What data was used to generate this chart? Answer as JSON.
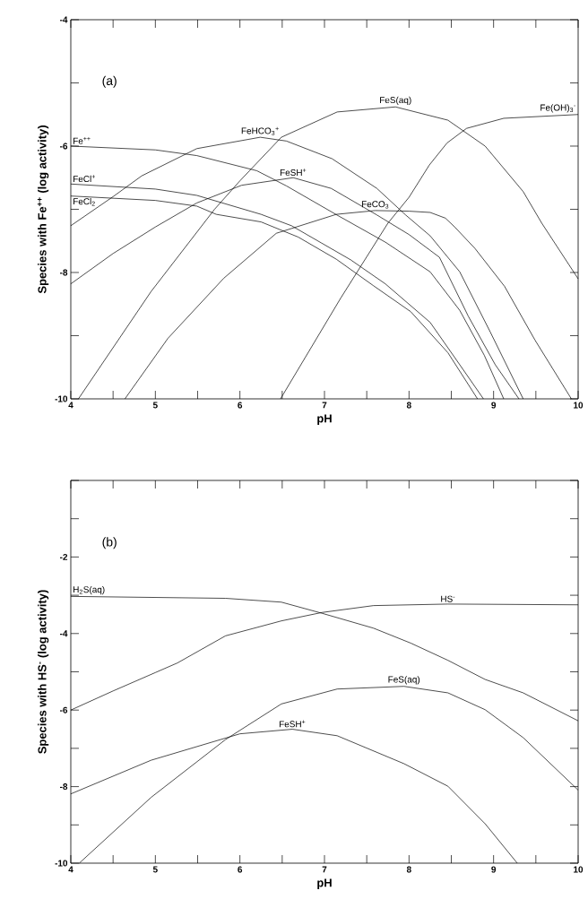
{
  "chart_data": [
    {
      "type": "line",
      "xlabel": "pH",
      "ylabel": "Species with Fe$^{++}$ (log activity)",
      "annotations": [
        "(a)"
      ],
      "xlim": [
        4,
        10
      ],
      "ylim": [
        -10,
        -4
      ],
      "xticks": [
        4,
        {
          "value": 4.5,
          "label": null
        },
        5,
        {
          "value": 5.5,
          "label": null
        },
        6,
        {
          "value": 6.5,
          "label": null
        },
        7,
        {
          "value": 7.5,
          "label": null
        },
        8,
        {
          "value": 8.5,
          "label": null
        },
        9,
        {
          "value": 9.5,
          "label": null
        },
        10
      ],
      "yticks": [
        -10,
        {
          "value": -9,
          "label": null
        },
        -8,
        {
          "value": -7,
          "label": null
        },
        -6,
        {
          "value": -5,
          "label": null
        },
        -4
      ],
      "grid": false,
      "marker": "none",
      "line_style": "solid",
      "series": [
        {
          "name": "Fe$^{++}$",
          "color": "#000000",
          "x": [
            4,
            5,
            5.49,
            6.2,
            6.55,
            7.16,
            7.72,
            8.25,
            8.6,
            8.89,
            9.12
          ],
          "values": [
            -6.0,
            -6.06,
            -6.15,
            -6.39,
            -6.63,
            -7.1,
            -7.52,
            -7.99,
            -8.6,
            -9.31,
            -10
          ]
        },
        {
          "name": "FeCl$^{+}$",
          "color": "#000000",
          "x": [
            4,
            5,
            5.49,
            6.25,
            6.61,
            6.96,
            7.31,
            7.72,
            8.25,
            8.6,
            8.88
          ],
          "values": [
            -6.6,
            -6.68,
            -6.78,
            -7.08,
            -7.26,
            -7.53,
            -7.8,
            -8.18,
            -8.79,
            -9.46,
            -10
          ]
        },
        {
          "name": "FeCl$_{2}$",
          "color": "#000000",
          "x": [
            4,
            5,
            5.49,
            5.72,
            6.25,
            6.69,
            7.14,
            7.58,
            8.02,
            8.46,
            8.81
          ],
          "values": [
            -6.79,
            -6.86,
            -6.95,
            -7.08,
            -7.2,
            -7.44,
            -7.79,
            -8.21,
            -8.62,
            -9.27,
            -10
          ]
        },
        {
          "name": "FeHCO$_{3}$$^{+}$",
          "color": "#000000",
          "x": [
            4,
            4.5,
            4.84,
            5.49,
            6.24,
            6.55,
            7.09,
            7.62,
            7.96,
            8.25,
            8.6,
            8.96,
            9.35
          ],
          "values": [
            -7.26,
            -6.8,
            -6.47,
            -6.04,
            -5.86,
            -5.92,
            -6.2,
            -6.67,
            -7.09,
            -7.42,
            -7.99,
            -8.94,
            -10
          ]
        },
        {
          "name": "FeSH$^{+}$",
          "color": "#000000",
          "x": [
            4,
            4.5,
            5,
            5.49,
            6.02,
            6.63,
            7.08,
            7.62,
            8.0,
            8.36,
            8.7,
            9.02,
            9.3
          ],
          "values": [
            -8.18,
            -7.7,
            -7.28,
            -6.9,
            -6.62,
            -6.5,
            -6.67,
            -7.09,
            -7.4,
            -7.76,
            -8.69,
            -9.46,
            -10
          ]
        },
        {
          "name": "FeS(aq)",
          "color": "#000000",
          "x": [
            4.09,
            4.95,
            5.7,
            6.0,
            6.49,
            7.15,
            7.84,
            8.46,
            8.9,
            9.35,
            9.57,
            10
          ],
          "values": [
            -10,
            -8.3,
            -7.0,
            -6.55,
            -5.86,
            -5.46,
            -5.38,
            -5.59,
            -6.0,
            -6.72,
            -7.22,
            -8.1
          ]
        },
        {
          "name": "FeCO$_{3}$",
          "color": "#000000",
          "x": [
            4.64,
            5.15,
            5.81,
            6.43,
            7.14,
            7.6,
            8.0,
            8.25,
            8.43,
            8.54,
            8.78,
            9.13,
            9.49,
            9.92
          ],
          "values": [
            -10,
            -9.04,
            -8.09,
            -7.38,
            -7.08,
            -7.02,
            -7.03,
            -7.05,
            -7.14,
            -7.28,
            -7.62,
            -8.22,
            -9.07,
            -10
          ]
        },
        {
          "name": "Fe(OH)$_{3}$$^{-}$",
          "color": "#000000",
          "x": [
            6.48,
            7.19,
            7.75,
            8.0,
            8.24,
            8.45,
            8.68,
            9.12,
            10
          ],
          "values": [
            -10,
            -8.41,
            -7.22,
            -6.81,
            -6.3,
            -5.95,
            -5.72,
            -5.56,
            -5.5
          ]
        }
      ]
    },
    {
      "type": "line",
      "xlabel": "pH",
      "ylabel": "Species with HS$^{-}$ (log activity)",
      "annotations": [
        "(b)"
      ],
      "xlim": [
        4,
        10
      ],
      "ylim": [
        -10,
        0
      ],
      "xticks": [
        4,
        {
          "value": 4.5,
          "label": null
        },
        5,
        {
          "value": 5.5,
          "label": null
        },
        6,
        {
          "value": 6.5,
          "label": null
        },
        7,
        {
          "value": 7.5,
          "label": null
        },
        8,
        {
          "value": 8.5,
          "label": null
        },
        9,
        {
          "value": 9.5,
          "label": null
        },
        10
      ],
      "yticks": [
        -10,
        {
          "value": -9,
          "label": null
        },
        -8,
        {
          "value": -7,
          "label": null
        },
        -6,
        {
          "value": -5,
          "label": null
        },
        -4,
        {
          "value": -3,
          "label": null
        },
        -2,
        {
          "value": -1,
          "label": null
        },
        {
          "value": 0,
          "label": null
        }
      ],
      "grid": false,
      "marker": "none",
      "line_style": "solid",
      "series": [
        {
          "name": "H$_{2}$S(aq)",
          "color": "#000000",
          "x": [
            4,
            5.83,
            6.49,
            6.97,
            7.58,
            8.02,
            8.46,
            8.9,
            9.35,
            10
          ],
          "values": [
            -3.03,
            -3.08,
            -3.18,
            -3.47,
            -3.86,
            -4.25,
            -4.7,
            -5.2,
            -5.55,
            -6.28
          ]
        },
        {
          "name": "HS$^{-}$",
          "color": "#000000",
          "x": [
            4,
            4.5,
            5,
            5.26,
            5.83,
            6.49,
            6.97,
            7.58,
            8.46,
            10
          ],
          "values": [
            -6.0,
            -5.5,
            -5.02,
            -4.77,
            -4.06,
            -3.67,
            -3.45,
            -3.27,
            -3.23,
            -3.25
          ]
        },
        {
          "name": "FeS(aq)",
          "color": "#000000",
          "x": [
            4.1,
            4.95,
            5.83,
            6.0,
            6.49,
            7.15,
            7.94,
            8.46,
            8.9,
            9.35,
            10
          ],
          "values": [
            -10,
            -8.28,
            -6.77,
            -6.53,
            -5.84,
            -5.45,
            -5.38,
            -5.55,
            -5.99,
            -6.72,
            -8.09
          ]
        },
        {
          "name": "FeSH$^{+}$",
          "color": "#000000",
          "x": [
            4,
            4.95,
            6.0,
            6.62,
            7.15,
            7.94,
            8.46,
            8.9,
            9.28
          ],
          "values": [
            -8.19,
            -7.31,
            -6.62,
            -6.5,
            -6.67,
            -7.4,
            -7.99,
            -8.97,
            -10
          ]
        }
      ]
    }
  ]
}
